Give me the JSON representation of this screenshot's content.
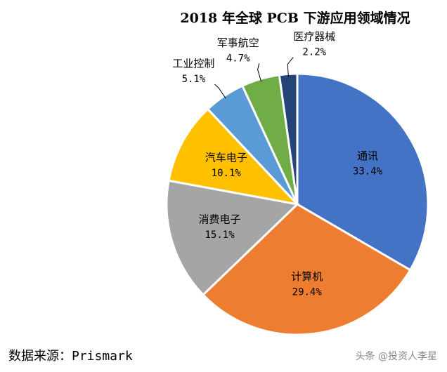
{
  "chart_data": {
    "type": "pie",
    "title": "2018 年全球 PCB 下游应用领域情况",
    "categories": [
      "通讯",
      "计算机",
      "消费电子",
      "汽车电子",
      "工业控制",
      "军事航空",
      "医疗器械"
    ],
    "values": [
      33.4,
      29.4,
      15.1,
      10.1,
      5.1,
      4.7,
      2.2
    ],
    "value_labels": [
      "33.4%",
      "29.4%",
      "15.1%",
      "10.1%",
      "5.1%",
      "4.7%",
      "2.2%"
    ],
    "colors": [
      "#4472c4",
      "#ed7d31",
      "#a5a5a5",
      "#ffc000",
      "#5b9bd5",
      "#70ad47",
      "#264478"
    ],
    "source": "数据来源：Prismark",
    "watermark": "头条 @投资人李星"
  }
}
